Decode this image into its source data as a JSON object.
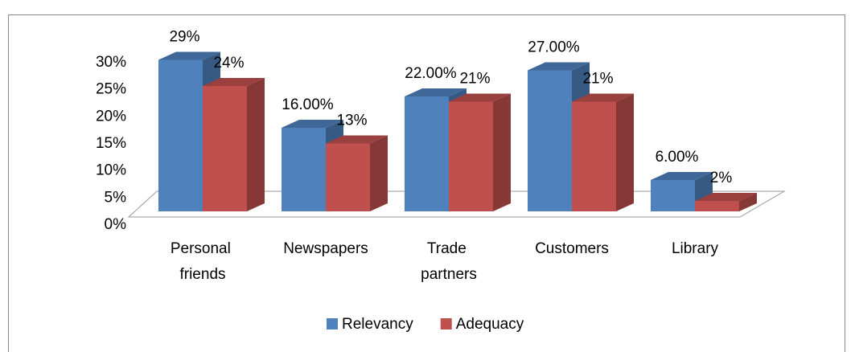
{
  "chart_data": {
    "type": "bar3d",
    "categories": [
      "Personal friends",
      "Newspapers",
      "Trade partners",
      "Customers",
      "Library"
    ],
    "series": [
      {
        "name": "Relevancy",
        "color": "#4f81bd",
        "values": [
          29,
          16,
          22,
          27,
          6
        ],
        "value_labels": [
          "29%",
          "16.00%",
          "22.00%",
          "27.00%",
          "6.00%"
        ]
      },
      {
        "name": "Adequacy",
        "color": "#c0504d",
        "values": [
          24,
          13,
          21,
          21,
          2
        ],
        "value_labels": [
          "24%",
          "13%",
          "21%",
          "21%",
          "2%"
        ]
      }
    ],
    "ylim": [
      0,
      30
    ],
    "yticks": [
      {
        "value": 0,
        "label": "0%"
      },
      {
        "value": 5,
        "label": "5%"
      },
      {
        "value": 10,
        "label": "10%"
      },
      {
        "value": 15,
        "label": "15%"
      },
      {
        "value": 20,
        "label": "20%"
      },
      {
        "value": 25,
        "label": "25%"
      },
      {
        "value": 30,
        "label": "30%"
      }
    ],
    "legend": "bottom"
  }
}
